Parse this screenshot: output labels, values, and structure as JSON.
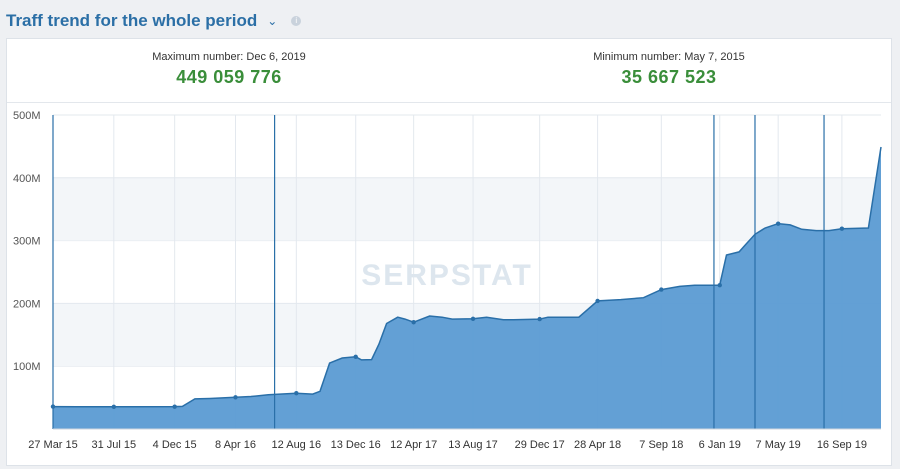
{
  "header": {
    "title": "Traff trend for the whole period"
  },
  "stats": {
    "max_label": "Maximum number: Dec 6, 2019",
    "max_value": "449 059 776",
    "min_label": "Minimum number: May 7, 2015",
    "min_value": "35 667 523"
  },
  "watermark": "SERPSTAT",
  "colors": {
    "accent": "#2b6fa6",
    "area": "#5b9bd3",
    "line": "#2a6fa8",
    "value_green": "#3a8e3a"
  },
  "chart_data": {
    "type": "area",
    "x": [
      "2015-03-27",
      "2015-05-15",
      "2015-07-31",
      "2015-09-15",
      "2015-12-04",
      "2015-12-20",
      "2016-01-15",
      "2016-02-15",
      "2016-04-08",
      "2016-05-10",
      "2016-06-15",
      "2016-08-12",
      "2016-09-15",
      "2016-09-30",
      "2016-10-20",
      "2016-11-15",
      "2016-12-13",
      "2016-12-25",
      "2017-01-15",
      "2017-01-30",
      "2017-02-15",
      "2017-03-10",
      "2017-03-25",
      "2017-04-12",
      "2017-05-15",
      "2017-06-10",
      "2017-07-01",
      "2017-08-13",
      "2017-09-10",
      "2017-10-15",
      "2017-11-05",
      "2017-12-29",
      "2018-01-15",
      "2018-02-15",
      "2018-03-20",
      "2018-04-28",
      "2018-06-15",
      "2018-08-01",
      "2018-09-07",
      "2018-10-15",
      "2018-11-15",
      "2018-12-25",
      "2019-01-06",
      "2019-01-20",
      "2019-02-15",
      "2019-03-01",
      "2019-03-20",
      "2019-04-10",
      "2019-05-07",
      "2019-06-01",
      "2019-06-25",
      "2019-07-25",
      "2019-08-20",
      "2019-09-16",
      "2019-11-10",
      "2019-12-06"
    ],
    "values": [
      35.7,
      35.4,
      35.3,
      35.5,
      35.6,
      36,
      48,
      48.5,
      50.5,
      51.8,
      54.5,
      57,
      55.5,
      60,
      105,
      113,
      115,
      110,
      110.5,
      135,
      168,
      178,
      175,
      170,
      180,
      178,
      175,
      175.5,
      178,
      174,
      174,
      175,
      178,
      178,
      178,
      204,
      206,
      209,
      222,
      227,
      229,
      229,
      229,
      277,
      282,
      294,
      310,
      320,
      327,
      325,
      318,
      316,
      316,
      319,
      320,
      449
    ],
    "x_ticks": [
      "27 Mar 15",
      "31 Jul 15",
      "4 Dec 15",
      "8 Apr 16",
      "12 Aug 16",
      "13 Dec 16",
      "12 Apr 17",
      "13 Aug 17",
      "29 Dec 17",
      "28 Apr 18",
      "7 Sep 18",
      "6 Jan 19",
      "7 May 19",
      "16 Sep 19"
    ],
    "y_ticks": [
      "100M",
      "200M",
      "300M",
      "400M",
      "500M"
    ],
    "ylim": [
      0,
      500
    ],
    "marker_dates": [
      "2015-03-27",
      "2015-07-31",
      "2015-12-04",
      "2016-04-08",
      "2016-08-12",
      "2016-12-13",
      "2017-04-12",
      "2017-08-13",
      "2017-12-29",
      "2018-04-28",
      "2018-09-07",
      "2019-01-06",
      "2019-05-07",
      "2019-09-16"
    ],
    "event_dates": [
      "2015-03-27",
      "2016-06-28",
      "2018-12-25",
      "2019-03-20",
      "2019-08-10"
    ],
    "grid": true
  }
}
